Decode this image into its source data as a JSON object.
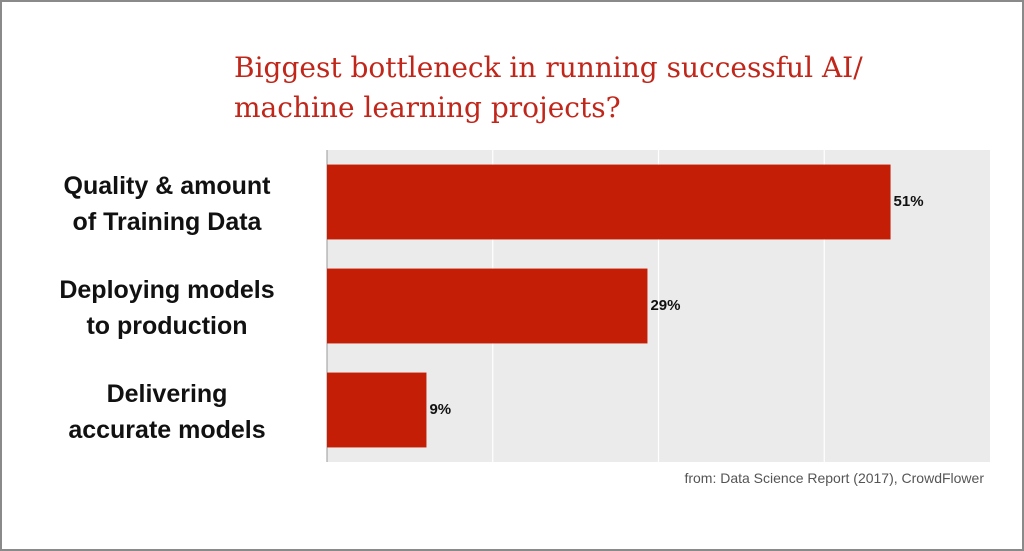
{
  "chart_data": {
    "type": "bar",
    "orientation": "horizontal",
    "title": "Biggest bottleneck in running successful AI/\nmachine learning projects?",
    "source": "from: Data Science Report (2017), CrowdFlower",
    "categories": [
      "Quality & amount\nof Training Data",
      "Deploying models\nto production",
      "Delivering\naccurate models"
    ],
    "values": [
      51,
      29,
      9
    ],
    "value_labels": [
      "51%",
      "29%",
      "9%"
    ],
    "color": "#c41f06",
    "xlim": [
      0,
      60
    ],
    "xticks": [
      15,
      30,
      45
    ],
    "grid": true
  }
}
